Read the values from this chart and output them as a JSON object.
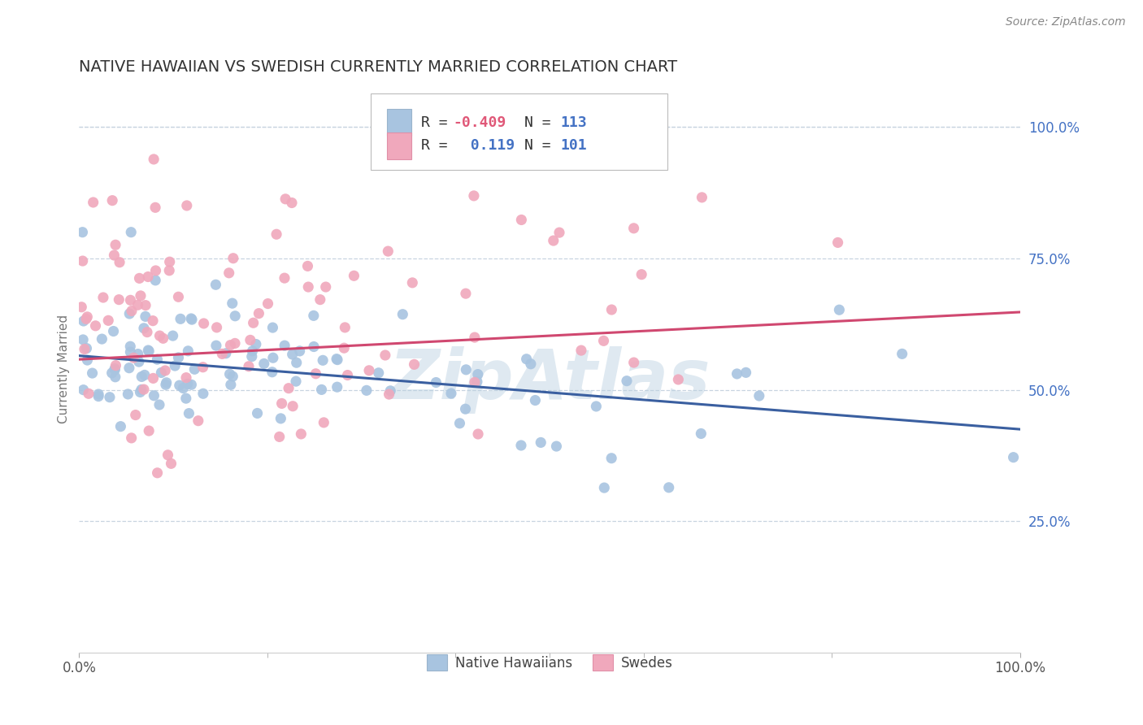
{
  "title": "NATIVE HAWAIIAN VS SWEDISH CURRENTLY MARRIED CORRELATION CHART",
  "source": "Source: ZipAtlas.com",
  "ylabel": "Currently Married",
  "watermark": "ZipAtlas",
  "blue_R": -0.409,
  "blue_N": 113,
  "pink_R": 0.119,
  "pink_N": 101,
  "blue_scatter_color": "#a8c4e0",
  "pink_scatter_color": "#f0a8bc",
  "blue_line_color": "#3a5fa0",
  "pink_line_color": "#d04870",
  "legend_label_blue": "Native Hawaiians",
  "legend_label_pink": "Swedes",
  "xlim": [
    0.0,
    1.0
  ],
  "ylim": [
    0.0,
    1.08
  ],
  "ytick_positions": [
    0.25,
    0.5,
    0.75,
    1.0
  ],
  "ytick_labels": [
    "25.0%",
    "50.0%",
    "75.0%",
    "100.0%"
  ],
  "xtick_positions": [
    0.0,
    1.0
  ],
  "xtick_labels": [
    "0.0%",
    "100.0%"
  ],
  "background_color": "#ffffff",
  "grid_color": "#c8d4e0",
  "title_color": "#333333",
  "title_fontsize": 14,
  "source_fontsize": 10,
  "watermark_color": "#b8cfe0",
  "watermark_fontsize": 62,
  "blue_trend_y0": 0.565,
  "blue_trend_y1": 0.425,
  "pink_trend_y0": 0.558,
  "pink_trend_y1": 0.648,
  "r_value_color_blue": "#e05878",
  "r_value_color_pink": "#4472c4",
  "n_value_color": "#4472c4"
}
